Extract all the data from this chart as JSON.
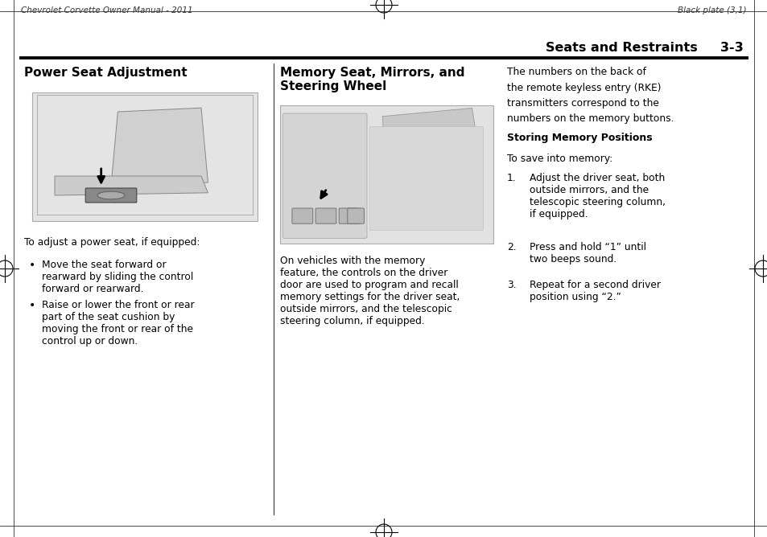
{
  "bg_color": "#ffffff",
  "page_width": 9.54,
  "page_height": 6.68,
  "header_left": "Chevrolet Corvette Owner Manual - 2011",
  "header_right": "Black plate (3,1)",
  "section_title": "Seats and Restraints",
  "section_number": "3-3",
  "col1_heading": "Power Seat Adjustment",
  "col2_heading": "Memory Seat, Mirrors, and\nSteering Wheel",
  "col1_body1": "To adjust a power seat, if equipped:",
  "col1_bullet1": "Move the seat forward or\nrearward by sliding the control\nforward or rearward.",
  "col1_bullet2": "Raise or lower the front or rear\npart of the seat cushion by\nmoving the front or rear of the\ncontrol up or down.",
  "col2_body": "On vehicles with the memory\nfeature, the controls on the driver\ndoor are used to program and recall\nmemory settings for the driver seat,\noutside mirrors, and the telescopic\nsteering column, if equipped.",
  "col3_body_line1": "The numbers on the back of",
  "col3_body_line2": "the remote keyless entry (RKE)",
  "col3_body_line3": "transmitters correspond to the",
  "col3_body_line4": "numbers on the memory buttons.",
  "col3_subheading": "Storing Memory Positions",
  "col3_sub_body": "To save into memory:",
  "col3_item1_num": "1.",
  "col3_item1_text": "Adjust the driver seat, both\noutside mirrors, and the\ntelescopic steering column,\nif equipped.",
  "col3_item2_num": "2.",
  "col3_item2_text": "Press and hold “1” until\ntwo beeps sound.",
  "col3_item3_num": "3.",
  "col3_item3_text": "Repeat for a second driver\nposition using “2.”",
  "font_color": "#000000",
  "img1_color": "#e8e8e8",
  "img2_color": "#e0e0e0"
}
